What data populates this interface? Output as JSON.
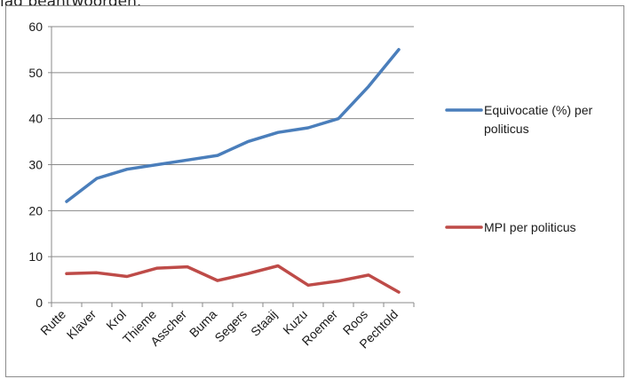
{
  "page": {
    "top_fragment": "lag beantwoorden."
  },
  "chart_data": {
    "type": "line",
    "categories": [
      "Rutte",
      "Klaver",
      "Krol",
      "Thieme",
      "Asscher",
      "Buma",
      "Segers",
      "Staaij",
      "Kuzu",
      "Roemer",
      "Roos",
      "Pechtold"
    ],
    "series": [
      {
        "name": "Equivocatie (%) per politicus",
        "color": "#4a7ebb",
        "values": [
          22,
          27,
          29,
          30,
          31,
          32,
          35,
          37,
          38,
          40,
          47,
          55
        ]
      },
      {
        "name": "MPI per politicus",
        "color": "#be4b48",
        "values": [
          6.3,
          6.5,
          5.7,
          7.5,
          7.8,
          4.8,
          6.3,
          8.0,
          3.8,
          4.7,
          6.0,
          2.3
        ]
      }
    ],
    "yticks": [
      0,
      10,
      20,
      30,
      40,
      50,
      60
    ],
    "ylim": [
      0,
      60
    ],
    "grid": true,
    "legend_position": "right",
    "title": "",
    "xlabel": "",
    "ylabel": ""
  }
}
